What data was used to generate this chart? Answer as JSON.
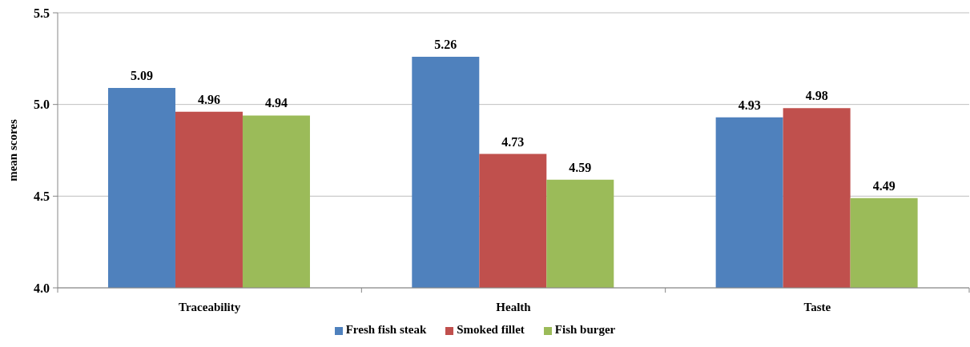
{
  "chart_data": {
    "type": "bar",
    "ylabel": "mean scores",
    "categories": [
      "Traceability",
      "Health",
      "Taste"
    ],
    "series": [
      {
        "name": "Fresh fish steak",
        "color": "#4f81bd",
        "values": [
          5.09,
          5.26,
          4.93
        ]
      },
      {
        "name": "Smoked fillet",
        "color": "#c0504d",
        "values": [
          4.96,
          4.73,
          4.98
        ]
      },
      {
        "name": "Fish burger",
        "color": "#9bbb59",
        "values": [
          4.94,
          4.59,
          4.49
        ]
      }
    ],
    "ylim": [
      4,
      5.5
    ],
    "yticks": [
      {
        "value": 4,
        "label": "4.0"
      },
      4.5,
      {
        "value": 5,
        "label": "5.0"
      },
      5.5
    ],
    "grid": "y",
    "legend": "bottom",
    "data_labels": true
  }
}
